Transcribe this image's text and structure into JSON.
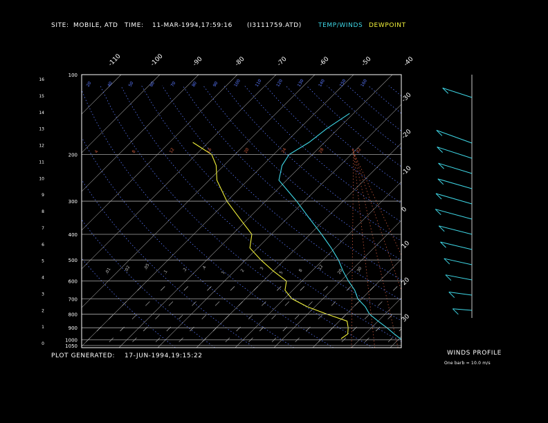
{
  "header": {
    "site_label": "SITE:",
    "site_value": "MOBILE, ATD",
    "time_label": "TIME:",
    "time_value": "11-MAR-1994,17:59:16",
    "file_value": "(I3111759.ATD)",
    "temp_legend": "TEMP/WINDS",
    "dew_legend": "DEWPOINT"
  },
  "footer": {
    "generated_label": "PLOT GENERATED:",
    "generated_value": "17-JUN-1994,19:15:22",
    "winds_title": "WINDS PROFILE",
    "winds_note": "One barb = 10.0 m/s"
  },
  "colors": {
    "temp": "#3fd9e8",
    "dew": "#f2f23a",
    "isotherm": "#9a9a9a",
    "isobar": "#a8a8a8",
    "mixing": "#5a78ff",
    "moist_adiabat": "#d05a3c",
    "frame": "#ffffff"
  },
  "chart_data": {
    "type": "line",
    "chart_kind": "skew-T log-P sounding",
    "pressure_ticks": [
      100,
      200,
      300,
      400,
      500,
      600,
      700,
      800,
      900,
      1000,
      1050
    ],
    "height_ticks": [
      16,
      15,
      14,
      13,
      12,
      11,
      10,
      9,
      8,
      7,
      6,
      5,
      4,
      3,
      2,
      1,
      0
    ],
    "temp_top_ticks": [
      -110,
      -100,
      -90,
      -80,
      -70,
      -60,
      -50,
      -40
    ],
    "temp_side_ticks": [
      -30,
      -20,
      -10,
      0,
      10,
      20,
      30
    ],
    "mixing_ratio_labels": [
      ".01",
      ".02",
      ".05",
      ".1",
      ".2",
      ".4",
      "1",
      "2",
      "3",
      "5",
      "8",
      "12",
      "20",
      "30"
    ],
    "adiabat_labels_top": [
      "20",
      "40",
      "50",
      "60",
      "70",
      "80",
      "90",
      "100",
      "110",
      "120",
      "130",
      "140",
      "150",
      "160"
    ],
    "adiabat_labels_mid": [
      "4",
      "8",
      "12",
      "16",
      "20",
      "24",
      "28",
      "32"
    ],
    "temperature": [
      {
        "p": 1000,
        "t": 21
      },
      {
        "p": 950,
        "t": 17.5
      },
      {
        "p": 900,
        "t": 14
      },
      {
        "p": 850,
        "t": 10
      },
      {
        "p": 800,
        "t": 6
      },
      {
        "p": 750,
        "t": 3
      },
      {
        "p": 700,
        "t": -1
      },
      {
        "p": 650,
        "t": -4
      },
      {
        "p": 600,
        "t": -8
      },
      {
        "p": 550,
        "t": -12
      },
      {
        "p": 500,
        "t": -16
      },
      {
        "p": 450,
        "t": -21
      },
      {
        "p": 400,
        "t": -27
      },
      {
        "p": 350,
        "t": -34
      },
      {
        "p": 300,
        "t": -42
      },
      {
        "p": 250,
        "t": -52
      },
      {
        "p": 220,
        "t": -55
      },
      {
        "p": 200,
        "t": -56
      },
      {
        "p": 180,
        "t": -54
      },
      {
        "p": 160,
        "t": -53
      },
      {
        "p": 140,
        "t": -51
      }
    ],
    "dewpoint": [
      {
        "p": 990,
        "t": 5
      },
      {
        "p": 950,
        "t": 5.5
      },
      {
        "p": 900,
        "t": 4
      },
      {
        "p": 850,
        "t": 2
      },
      {
        "p": 800,
        "t": -5
      },
      {
        "p": 750,
        "t": -12
      },
      {
        "p": 700,
        "t": -18
      },
      {
        "p": 650,
        "t": -22
      },
      {
        "p": 600,
        "t": -24
      },
      {
        "p": 550,
        "t": -30
      },
      {
        "p": 500,
        "t": -36
      },
      {
        "p": 450,
        "t": -42
      },
      {
        "p": 400,
        "t": -45
      },
      {
        "p": 350,
        "t": -52
      },
      {
        "p": 300,
        "t": -60
      },
      {
        "p": 250,
        "t": -68
      },
      {
        "p": 220,
        "t": -72
      },
      {
        "p": 200,
        "t": -76
      },
      {
        "p": 180,
        "t": -84
      }
    ],
    "winds": [
      {
        "h": 0.5,
        "dir": 210,
        "kts": 10
      },
      {
        "h": 1.5,
        "dir": 230,
        "kts": 14
      },
      {
        "h": 2.5,
        "dir": 250,
        "kts": 18
      },
      {
        "h": 3.5,
        "dir": 260,
        "kts": 20
      },
      {
        "h": 4.5,
        "dir": 265,
        "kts": 24
      },
      {
        "h": 5.5,
        "dir": 270,
        "kts": 26
      },
      {
        "h": 6.5,
        "dir": 275,
        "kts": 30
      },
      {
        "h": 7.5,
        "dir": 280,
        "kts": 30
      },
      {
        "h": 8.5,
        "dir": 280,
        "kts": 28
      },
      {
        "h": 9.5,
        "dir": 285,
        "kts": 28
      },
      {
        "h": 10.5,
        "dir": 290,
        "kts": 30
      },
      {
        "h": 11.5,
        "dir": 300,
        "kts": 32
      },
      {
        "h": 14.5,
        "dir": 290,
        "kts": 24
      }
    ]
  }
}
